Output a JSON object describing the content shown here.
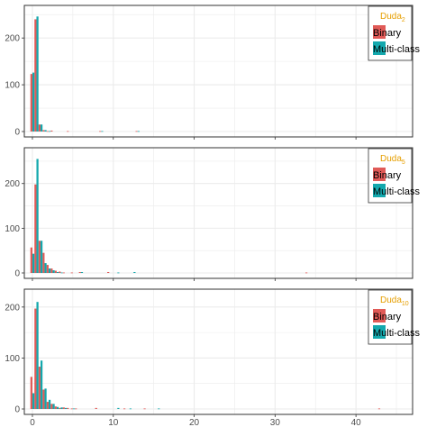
{
  "colors": {
    "binary": "#e05a57",
    "multiclass": "#13a8ad",
    "legend_title": "#e69f00",
    "grid": "#ebebeb",
    "panel_border": "#333333"
  },
  "chart_data": [
    {
      "type": "bar",
      "title_main": "Duda",
      "title_sub": "2",
      "legend": [
        "Binary",
        "Multi-class"
      ],
      "legend_position": "top-right",
      "grid": true,
      "xlim": [
        -1,
        47
      ],
      "ylim": [
        0,
        262
      ],
      "x_ticks": [
        0,
        10,
        20,
        30,
        40
      ],
      "y_ticks": [
        0,
        100,
        200
      ],
      "binwidth": 0.5,
      "series": [
        {
          "name": "Binary",
          "x": [
            0,
            0.5,
            1,
            1.5,
            2,
            2.5,
            4.5,
            8.5,
            13
          ],
          "values": [
            123,
            240,
            15,
            3,
            1,
            2,
            1,
            1,
            1
          ]
        },
        {
          "name": "Multi-class",
          "x": [
            0,
            0.5,
            1,
            1.5,
            2,
            8.5,
            13
          ],
          "values": [
            126,
            246,
            15,
            3,
            1,
            1,
            1
          ]
        }
      ]
    },
    {
      "type": "bar",
      "title_main": "Duda",
      "title_sub": "5",
      "legend": [
        "Binary",
        "Multi-class"
      ],
      "legend_position": "top-right",
      "grid": true,
      "xlim": [
        -1,
        47
      ],
      "ylim": [
        0,
        272
      ],
      "x_ticks": [
        0,
        10,
        20,
        30,
        40
      ],
      "y_ticks": [
        0,
        100,
        200
      ],
      "binwidth": 0.5,
      "series": [
        {
          "name": "Binary",
          "x": [
            0,
            0.5,
            1,
            1.5,
            2,
            2.5,
            3,
            3.5,
            4,
            5,
            6,
            9.5,
            34
          ],
          "values": [
            57,
            198,
            72,
            45,
            18,
            10,
            5,
            3,
            1,
            1,
            2,
            2,
            1
          ]
        },
        {
          "name": "Multi-class",
          "x": [
            0,
            0.5,
            1,
            1.5,
            2,
            2.5,
            3,
            3.5,
            6,
            10.5,
            12.5
          ],
          "values": [
            43,
            255,
            72,
            22,
            10,
            6,
            2,
            1,
            2,
            1,
            2
          ]
        }
      ]
    },
    {
      "type": "bar",
      "title_main": "Duda",
      "title_sub": "10",
      "legend": [
        "Binary",
        "Multi-class"
      ],
      "legend_position": "top-right",
      "grid": true,
      "xlim": [
        -1,
        47
      ],
      "ylim": [
        0,
        228
      ],
      "x_ticks": [
        0,
        10,
        20,
        30,
        40
      ],
      "y_ticks": [
        0,
        100,
        200
      ],
      "binwidth": 0.5,
      "series": [
        {
          "name": "Binary",
          "x": [
            0,
            0.5,
            1,
            1.5,
            2,
            2.5,
            3,
            3.5,
            4,
            4.5,
            5,
            5.5,
            8,
            11.5,
            14,
            43
          ],
          "values": [
            63,
            197,
            83,
            38,
            14,
            10,
            5,
            2,
            3,
            2,
            1,
            1,
            2,
            1,
            1,
            1
          ]
        },
        {
          "name": "Multi-class",
          "x": [
            0,
            0.5,
            1,
            1.5,
            2,
            2.5,
            3,
            3.5,
            4,
            5,
            10.5,
            12,
            15.5
          ],
          "values": [
            31,
            210,
            95,
            40,
            18,
            10,
            4,
            3,
            2,
            1,
            2,
            1,
            1
          ]
        }
      ]
    }
  ]
}
